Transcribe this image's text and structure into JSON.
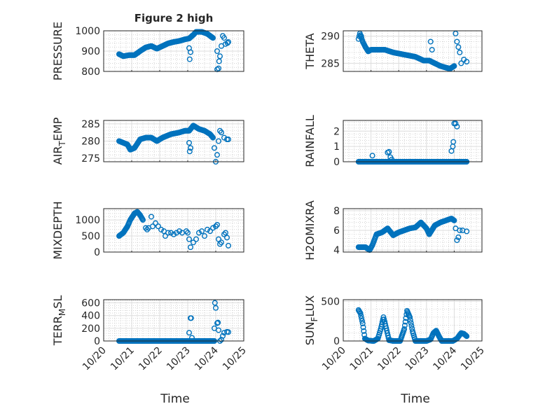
{
  "chart_data": {
    "type": "scatter",
    "title": "Figure 2 high",
    "x_tick_labels": [
      "10/20",
      "10/21",
      "10/22",
      "10/23",
      "10/24",
      "10/25"
    ],
    "xlim": [
      0,
      5
    ],
    "xlabel": "Time",
    "marker_color": "#0072BD",
    "grid": true,
    "subplots": [
      {
        "ylabel": "PRESSURE",
        "ylabel_parts": [
          "PRESSURE"
        ],
        "ylim": [
          800,
          1000
        ],
        "yticks": [
          800,
          900,
          1000
        ],
        "trend": [
          [
            0.55,
            885
          ],
          [
            0.7,
            875
          ],
          [
            0.9,
            880
          ],
          [
            1.1,
            880
          ],
          [
            1.3,
            900
          ],
          [
            1.5,
            918
          ],
          [
            1.7,
            925
          ],
          [
            1.9,
            912
          ],
          [
            2.1,
            925
          ],
          [
            2.3,
            938
          ],
          [
            2.5,
            945
          ],
          [
            2.7,
            950
          ],
          [
            2.9,
            958
          ],
          [
            3.05,
            962
          ],
          [
            3.2,
            980
          ],
          [
            3.3,
            995
          ],
          [
            3.5,
            995
          ],
          [
            3.7,
            985
          ],
          [
            3.9,
            965
          ]
        ],
        "scatter": [
          [
            3.05,
            915
          ],
          [
            3.1,
            895
          ],
          [
            3.07,
            860
          ],
          [
            3.15,
            975
          ],
          [
            4.05,
            900
          ],
          [
            4.05,
            810
          ],
          [
            4.1,
            815
          ],
          [
            4.12,
            850
          ],
          [
            4.15,
            875
          ],
          [
            4.2,
            925
          ],
          [
            4.25,
            975
          ],
          [
            4.3,
            965
          ],
          [
            4.35,
            935
          ],
          [
            4.42,
            940
          ],
          [
            4.45,
            945
          ]
        ]
      },
      {
        "ylabel": "THETA",
        "ylabel_parts": [
          "THETA"
        ],
        "ylim": [
          283.5,
          291
        ],
        "yticks": [
          285,
          290
        ],
        "trend": [
          [
            0.55,
            289.5
          ],
          [
            0.6,
            290.5
          ],
          [
            0.7,
            289
          ],
          [
            0.8,
            288
          ],
          [
            0.9,
            287.2
          ],
          [
            1.0,
            287.5
          ],
          [
            1.5,
            287.5
          ],
          [
            1.8,
            287
          ],
          [
            2.0,
            286.8
          ],
          [
            2.3,
            286.5
          ],
          [
            2.6,
            286.2
          ],
          [
            2.9,
            285.5
          ],
          [
            3.1,
            285.5
          ],
          [
            3.3,
            285
          ],
          [
            3.5,
            284.5
          ],
          [
            3.7,
            284.2
          ],
          [
            3.85,
            284
          ],
          [
            4.0,
            284.5
          ]
        ],
        "scatter": [
          [
            0.65,
            290
          ],
          [
            3.15,
            289
          ],
          [
            3.2,
            287.5
          ],
          [
            4.05,
            290.5
          ],
          [
            4.1,
            289
          ],
          [
            4.15,
            288
          ],
          [
            4.2,
            287
          ],
          [
            4.25,
            285
          ],
          [
            4.35,
            285.7
          ],
          [
            4.45,
            285.3
          ]
        ]
      },
      {
        "ylabel": "AIR_TEMP",
        "ylabel_parts": [
          "AIR",
          "T",
          "EMP"
        ],
        "ylim": [
          274,
          286
        ],
        "yticks": [
          275,
          280,
          285
        ],
        "trend": [
          [
            0.55,
            280
          ],
          [
            0.7,
            279.5
          ],
          [
            0.85,
            279
          ],
          [
            0.95,
            277.5
          ],
          [
            1.1,
            278
          ],
          [
            1.3,
            280.5
          ],
          [
            1.5,
            281
          ],
          [
            1.7,
            281
          ],
          [
            1.9,
            280
          ],
          [
            2.1,
            281
          ],
          [
            2.4,
            282
          ],
          [
            2.7,
            282.5
          ],
          [
            2.9,
            283
          ],
          [
            3.05,
            283
          ],
          [
            3.2,
            284.5
          ],
          [
            3.4,
            283.5
          ],
          [
            3.6,
            283
          ],
          [
            3.8,
            282
          ],
          [
            3.9,
            281
          ]
        ],
        "scatter": [
          [
            3.05,
            279.5
          ],
          [
            3.07,
            277
          ],
          [
            3.1,
            278
          ],
          [
            3.95,
            278
          ],
          [
            4.0,
            274
          ],
          [
            4.05,
            276
          ],
          [
            4.1,
            280
          ],
          [
            4.15,
            283
          ],
          [
            4.2,
            282.5
          ],
          [
            4.3,
            281
          ],
          [
            4.4,
            280.5
          ],
          [
            4.45,
            280.5
          ]
        ]
      },
      {
        "ylabel": "RAINFALL",
        "ylabel_parts": [
          "RAINFALL"
        ],
        "ylim": [
          0,
          2.7
        ],
        "yticks": [
          0,
          1,
          2
        ],
        "trend": [
          [
            0.55,
            0
          ],
          [
            4.45,
            0
          ]
        ],
        "scatter": [
          [
            1.05,
            0.4
          ],
          [
            1.6,
            0.6
          ],
          [
            1.65,
            0.65
          ],
          [
            1.7,
            0.3
          ],
          [
            1.75,
            0.15
          ],
          [
            3.9,
            0.7
          ],
          [
            3.95,
            1.0
          ],
          [
            3.97,
            1.3
          ],
          [
            4.0,
            2.5
          ],
          [
            4.05,
            2.5
          ],
          [
            4.1,
            2.3
          ]
        ]
      },
      {
        "ylabel": "MIXDEPTH",
        "ylabel_parts": [
          "MIXDEPTH"
        ],
        "ylim": [
          0,
          1350
        ],
        "yticks": [
          0,
          500,
          1000
        ],
        "trend": [
          [
            0.55,
            500
          ],
          [
            0.7,
            600
          ],
          [
            0.85,
            800
          ],
          [
            0.95,
            1000
          ],
          [
            1.1,
            1200
          ],
          [
            1.2,
            1250
          ],
          [
            1.3,
            1150
          ],
          [
            1.4,
            1000
          ]
        ],
        "scatter": [
          [
            1.5,
            750
          ],
          [
            1.55,
            700
          ],
          [
            1.6,
            750
          ],
          [
            1.7,
            1100
          ],
          [
            1.75,
            800
          ],
          [
            1.85,
            900
          ],
          [
            1.95,
            800
          ],
          [
            2.05,
            700
          ],
          [
            2.15,
            650
          ],
          [
            2.2,
            500
          ],
          [
            2.3,
            600
          ],
          [
            2.4,
            600
          ],
          [
            2.5,
            550
          ],
          [
            2.6,
            600
          ],
          [
            2.7,
            650
          ],
          [
            2.8,
            600
          ],
          [
            2.95,
            650
          ],
          [
            3.0,
            600
          ],
          [
            3.05,
            400
          ],
          [
            3.1,
            150
          ],
          [
            3.2,
            300
          ],
          [
            3.3,
            400
          ],
          [
            3.4,
            600
          ],
          [
            3.5,
            650
          ],
          [
            3.6,
            500
          ],
          [
            3.7,
            700
          ],
          [
            3.8,
            650
          ],
          [
            3.9,
            750
          ],
          [
            4.0,
            800
          ],
          [
            4.05,
            850
          ],
          [
            4.1,
            400
          ],
          [
            4.15,
            250
          ],
          [
            4.2,
            300
          ],
          [
            4.3,
            550
          ],
          [
            4.35,
            600
          ],
          [
            4.4,
            450
          ],
          [
            4.45,
            200
          ]
        ]
      },
      {
        "ylabel": "H2OMIXRA",
        "ylabel_parts": [
          "H2OMIXRA"
        ],
        "ylim": [
          3.8,
          8.2
        ],
        "yticks": [
          4,
          6,
          8
        ],
        "trend": [
          [
            0.55,
            4.3
          ],
          [
            0.8,
            4.3
          ],
          [
            0.95,
            4.0
          ],
          [
            1.05,
            4.5
          ],
          [
            1.2,
            5.6
          ],
          [
            1.4,
            5.8
          ],
          [
            1.6,
            6.2
          ],
          [
            1.8,
            5.5
          ],
          [
            2.0,
            5.8
          ],
          [
            2.2,
            6.0
          ],
          [
            2.4,
            6.2
          ],
          [
            2.6,
            6.3
          ],
          [
            2.8,
            6.8
          ],
          [
            3.0,
            6.2
          ],
          [
            3.1,
            5.6
          ],
          [
            3.3,
            6.5
          ],
          [
            3.5,
            6.8
          ],
          [
            3.7,
            7.0
          ],
          [
            3.9,
            7.2
          ],
          [
            4.0,
            7.0
          ]
        ],
        "scatter": [
          [
            4.05,
            6.2
          ],
          [
            4.1,
            5.0
          ],
          [
            4.15,
            5.3
          ],
          [
            4.2,
            6.0
          ],
          [
            4.3,
            6.0
          ],
          [
            4.45,
            5.9
          ]
        ]
      },
      {
        "ylabel": "TERR_MSL",
        "ylabel_parts": [
          "TERR",
          "M",
          "SL"
        ],
        "ylim": [
          0,
          650
        ],
        "yticks": [
          0,
          200,
          400,
          600
        ],
        "trend": [
          [
            0.55,
            0
          ],
          [
            3.1,
            0
          ],
          [
            3.2,
            0
          ],
          [
            3.95,
            0
          ]
        ],
        "scatter": [
          [
            3.05,
            130
          ],
          [
            3.1,
            360
          ],
          [
            3.12,
            360
          ],
          [
            3.15,
            50
          ],
          [
            3.95,
            200
          ],
          [
            3.97,
            600
          ],
          [
            4.0,
            520
          ],
          [
            4.05,
            280
          ],
          [
            4.08,
            290
          ],
          [
            4.1,
            170
          ],
          [
            4.15,
            0
          ],
          [
            4.2,
            20
          ],
          [
            4.25,
            80
          ],
          [
            4.3,
            130
          ],
          [
            4.4,
            145
          ],
          [
            4.45,
            140
          ]
        ]
      },
      {
        "ylabel": "SUN_FLUX",
        "ylabel_parts": [
          "SUN",
          "F",
          "LUX"
        ],
        "ylim": [
          0,
          520
        ],
        "yticks": [
          0,
          500
        ],
        "trend": [
          [
            0.55,
            390
          ],
          [
            0.62,
            350
          ],
          [
            0.7,
            220
          ],
          [
            0.78,
            30
          ],
          [
            0.9,
            5
          ],
          [
            1.1,
            0
          ],
          [
            1.25,
            30
          ],
          [
            1.35,
            150
          ],
          [
            1.45,
            300
          ],
          [
            1.55,
            160
          ],
          [
            1.65,
            10
          ],
          [
            1.8,
            0
          ],
          [
            2.05,
            0
          ],
          [
            2.2,
            150
          ],
          [
            2.3,
            380
          ],
          [
            2.4,
            300
          ],
          [
            2.5,
            120
          ],
          [
            2.6,
            0
          ],
          [
            3.0,
            0
          ],
          [
            3.15,
            20
          ],
          [
            3.25,
            100
          ],
          [
            3.35,
            130
          ],
          [
            3.45,
            60
          ],
          [
            3.55,
            0
          ],
          [
            3.95,
            0
          ],
          [
            4.1,
            30
          ],
          [
            4.25,
            100
          ],
          [
            4.35,
            90
          ],
          [
            4.45,
            60
          ]
        ],
        "scatter": []
      }
    ]
  }
}
